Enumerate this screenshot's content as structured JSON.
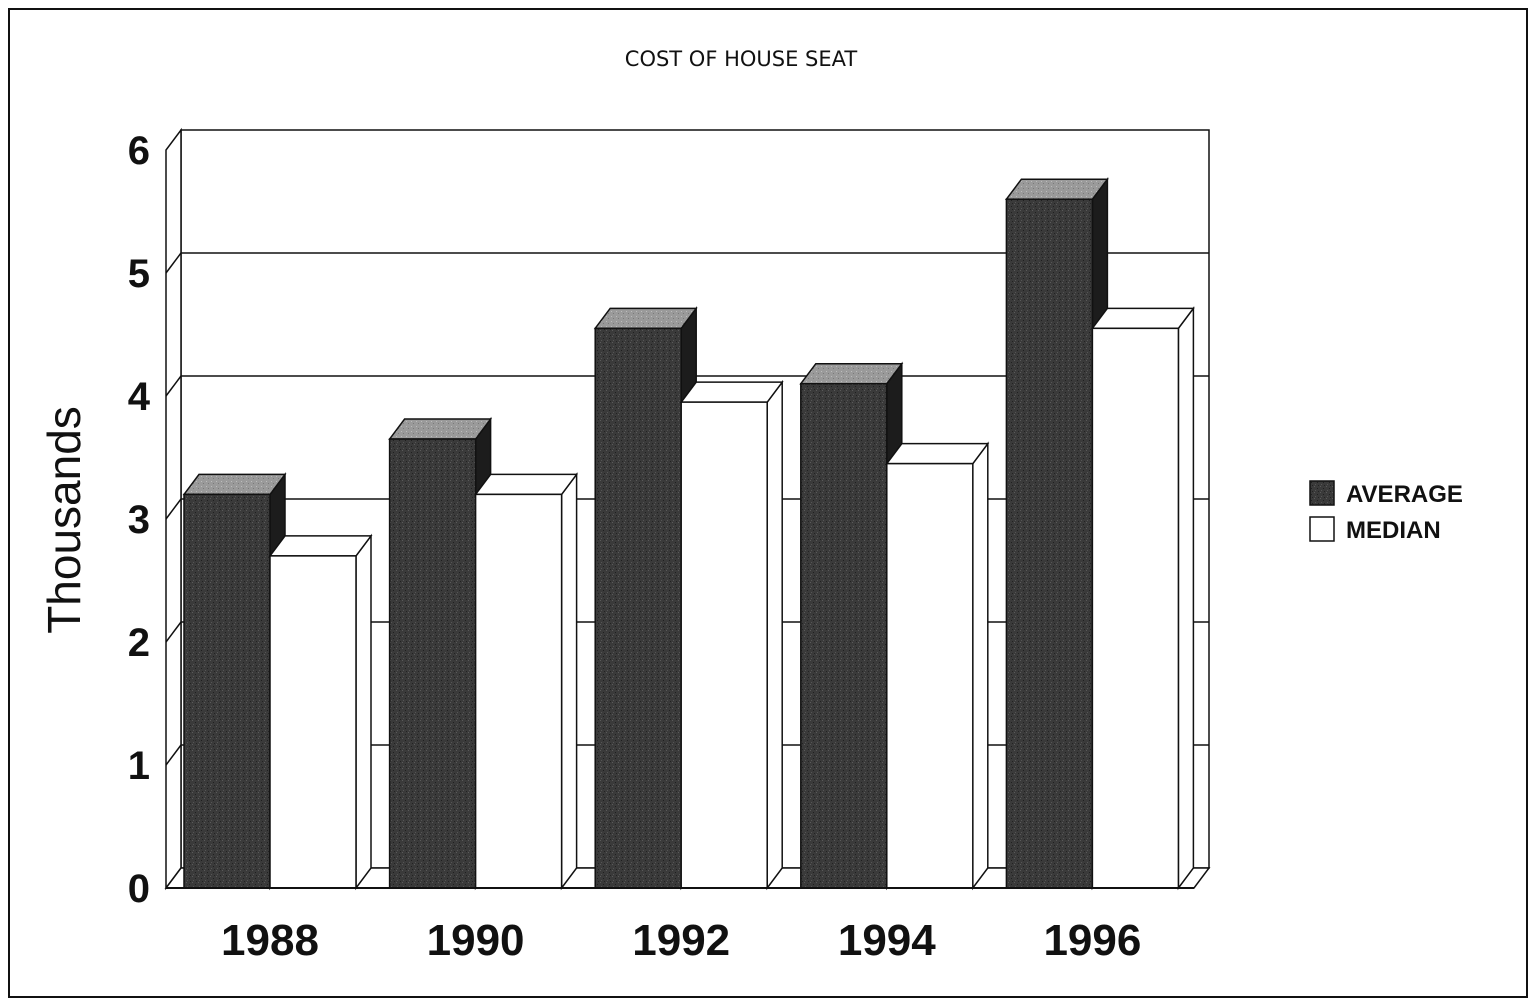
{
  "chart_data": {
    "type": "bar",
    "title": "COST OF HOUSE SEAT",
    "xlabel": "",
    "ylabel": "Thousands",
    "ylim": [
      0,
      6
    ],
    "yticks": [
      "0",
      "1",
      "2",
      "3",
      "4",
      "5",
      "6"
    ],
    "categories": [
      "1988",
      "1990",
      "1992",
      "1994",
      "1996"
    ],
    "series": [
      {
        "name": "AVERAGE",
        "values": [
          3.2,
          3.65,
          4.55,
          4.1,
          5.6
        ],
        "color": "#3a3a3a"
      },
      {
        "name": "MEDIAN",
        "values": [
          2.7,
          3.2,
          3.95,
          3.45,
          4.55
        ],
        "color": "#ffffff"
      }
    ],
    "grid": true,
    "legend_position": "right",
    "style": "3d-clustered-column"
  }
}
